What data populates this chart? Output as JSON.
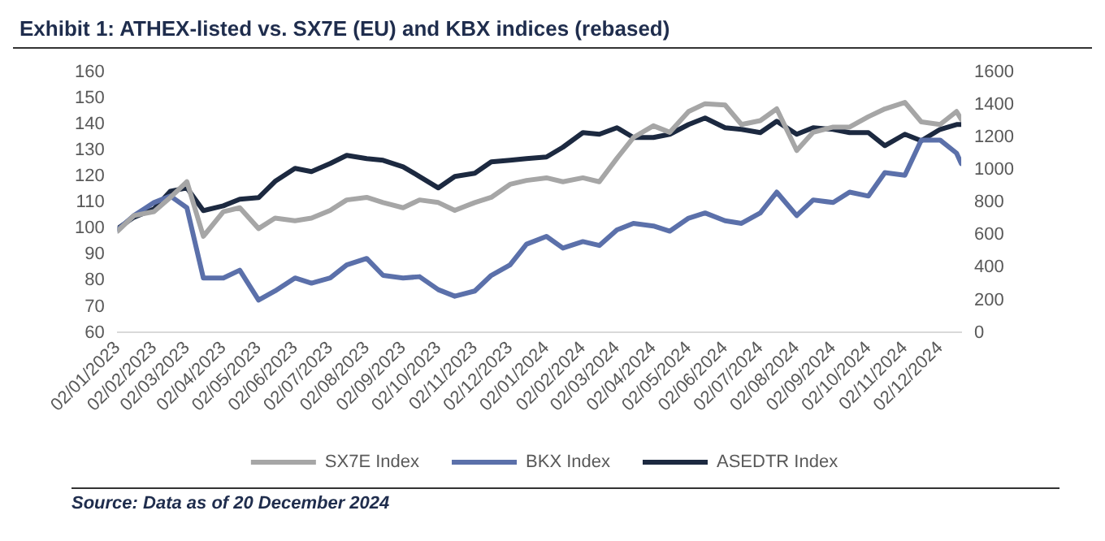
{
  "chart_data": {
    "type": "line",
    "title": "Exhibit 1: ATHEX-listed vs. SX7E (EU) and KBX indices (rebased)",
    "annotations": [
      "Source: Data as of 20 December 2024"
    ],
    "x": [
      "2023-01-02",
      "2023-01-16",
      "2023-02-02",
      "2023-02-16",
      "2023-03-02",
      "2023-03-16",
      "2023-04-02",
      "2023-04-16",
      "2023-05-02",
      "2023-05-16",
      "2023-06-02",
      "2023-06-16",
      "2023-07-02",
      "2023-07-16",
      "2023-08-02",
      "2023-08-16",
      "2023-09-02",
      "2023-09-16",
      "2023-10-02",
      "2023-10-16",
      "2023-11-02",
      "2023-11-16",
      "2023-12-02",
      "2023-12-16",
      "2024-01-02",
      "2024-01-16",
      "2024-02-02",
      "2024-02-16",
      "2024-03-02",
      "2024-03-16",
      "2024-04-02",
      "2024-04-16",
      "2024-05-02",
      "2024-05-16",
      "2024-06-02",
      "2024-06-16",
      "2024-07-02",
      "2024-07-16",
      "2024-08-02",
      "2024-08-16",
      "2024-09-02",
      "2024-09-16",
      "2024-10-02",
      "2024-10-16",
      "2024-11-02",
      "2024-11-16",
      "2024-12-02",
      "2024-12-16",
      "2024-12-20"
    ],
    "series": [
      {
        "name": "SX7E Index",
        "color": "#a6a6a6",
        "values": [
          99,
          105,
          106.5,
          112,
          118,
          97,
          106.5,
          108,
          100,
          104,
          103,
          104,
          107,
          111,
          112,
          110,
          108,
          111,
          110,
          107,
          110,
          112,
          117,
          118.5,
          119.5,
          118,
          119.5,
          118,
          127,
          135,
          139.5,
          137,
          145,
          148,
          147.5,
          140,
          141.5,
          146,
          130,
          137,
          139,
          139,
          143,
          146,
          148.5,
          141,
          140,
          145,
          142
        ]
      },
      {
        "name": "BKX Index",
        "color": "#5b70aa",
        "values": [
          99.5,
          105,
          110,
          112.5,
          108,
          81,
          81,
          84,
          72.5,
          76,
          81,
          79,
          81,
          86,
          88.5,
          82,
          81,
          81.5,
          76.5,
          74,
          76,
          82,
          86,
          94,
          97,
          92.5,
          95,
          93.5,
          99.5,
          102,
          101,
          99,
          104,
          106,
          103,
          102,
          106,
          114,
          105,
          111,
          110,
          114,
          112.5,
          121.5,
          120.5,
          134,
          134,
          129,
          125
        ]
      },
      {
        "name": "ASEDTR Index",
        "color": "#1c2940",
        "axis": "y2",
        "values": [
          640,
          710,
          760,
          870,
          890,
          750,
          780,
          820,
          830,
          930,
          1010,
          990,
          1040,
          1090,
          1070,
          1060,
          1020,
          960,
          890,
          960,
          980,
          1050,
          1060,
          1070,
          1080,
          1140,
          1230,
          1220,
          1260,
          1200,
          1200,
          1220,
          1280,
          1320,
          1260,
          1250,
          1230,
          1300,
          1220,
          1260,
          1250,
          1230,
          1230,
          1150,
          1220,
          1180,
          1250,
          1280,
          1280
        ]
      }
    ],
    "xlim": [
      "2023-01-02",
      "2024-12-20"
    ],
    "xticks": [
      {
        "value": "2023-01-02",
        "label": "02/01/2023"
      },
      {
        "value": "2023-02-02",
        "label": "02/02/2023"
      },
      {
        "value": "2023-03-02",
        "label": "02/03/2023"
      },
      {
        "value": "2023-04-02",
        "label": "02/04/2023"
      },
      {
        "value": "2023-05-02",
        "label": "02/05/2023"
      },
      {
        "value": "2023-06-02",
        "label": "02/06/2023"
      },
      {
        "value": "2023-07-02",
        "label": "02/07/2023"
      },
      {
        "value": "2023-08-02",
        "label": "02/08/2023"
      },
      {
        "value": "2023-09-02",
        "label": "02/09/2023"
      },
      {
        "value": "2023-10-02",
        "label": "02/10/2023"
      },
      {
        "value": "2023-11-02",
        "label": "02/11/2023"
      },
      {
        "value": "2023-12-02",
        "label": "02/12/2023"
      },
      {
        "value": "2024-01-02",
        "label": "02/01/2024"
      },
      {
        "value": "2024-02-02",
        "label": "02/02/2024"
      },
      {
        "value": "2024-03-02",
        "label": "02/03/2024"
      },
      {
        "value": "2024-04-02",
        "label": "02/04/2024"
      },
      {
        "value": "2024-05-02",
        "label": "02/05/2024"
      },
      {
        "value": "2024-06-02",
        "label": "02/06/2024"
      },
      {
        "value": "2024-07-02",
        "label": "02/07/2024"
      },
      {
        "value": "2024-08-02",
        "label": "02/08/2024"
      },
      {
        "value": "2024-09-02",
        "label": "02/09/2024"
      },
      {
        "value": "2024-10-02",
        "label": "02/10/2024"
      },
      {
        "value": "2024-11-02",
        "label": "02/11/2024"
      },
      {
        "value": "2024-12-02",
        "label": "02/12/2024"
      }
    ],
    "ylim": [
      60,
      160
    ],
    "yticks": [
      60,
      70,
      80,
      90,
      100,
      110,
      120,
      130,
      140,
      150,
      160
    ],
    "y2lim": [
      0,
      1600
    ],
    "y2ticks": [
      0,
      200,
      400,
      600,
      800,
      1000,
      1200,
      1400,
      1600
    ],
    "grid": false,
    "legend": "bottom",
    "marker": "none",
    "line_style": "solid"
  }
}
